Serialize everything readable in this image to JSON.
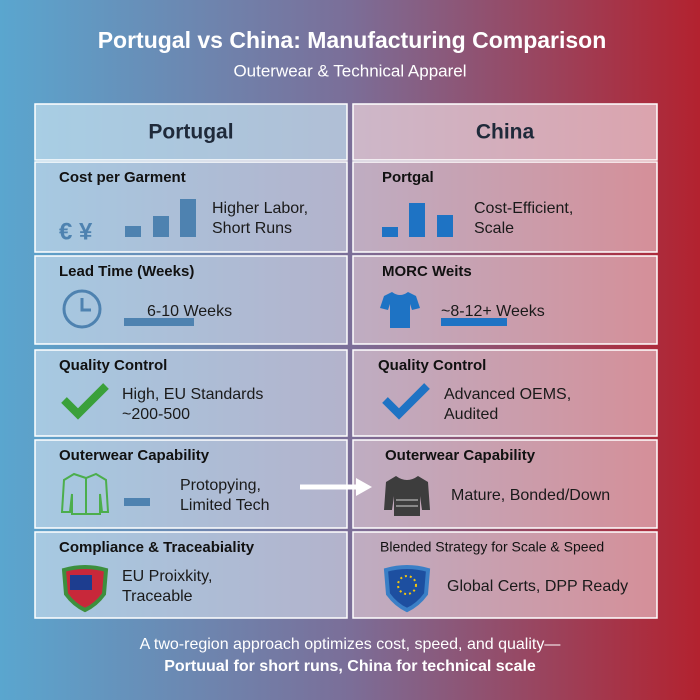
{
  "header": {
    "title": "Portugal vs China: Manufacturing Comparison",
    "subtitle": "Outerwear & Technical Apparel"
  },
  "columns": [
    {
      "heading": "Portugal",
      "rows": [
        {
          "title": "Cost per Garment",
          "symbols": "€ ¥",
          "lines": [
            "Higher Labor,",
            "Short Runs"
          ]
        },
        {
          "title": "Lead Time (Weeks)",
          "lines": [
            "6-10 Weeks"
          ]
        },
        {
          "title": "Quality Control",
          "lines": [
            "High, EU Standards",
            "~200-500"
          ]
        },
        {
          "title": "Outerwear Capability",
          "lines": [
            "Protopying,",
            "Limited Tech"
          ]
        },
        {
          "title": "Compliance & Traceabiality",
          "lines": [
            "EU Proixkity,",
            "Traceable"
          ]
        }
      ]
    },
    {
      "heading": "China",
      "rows": [
        {
          "title": "Portgal",
          "lines": [
            "Cost-Efficient,",
            "Scale"
          ]
        },
        {
          "title": "MORC Weits",
          "lines": [
            "~8-12+ Weeks"
          ]
        },
        {
          "title": "Quality Control",
          "lines": [
            "Advanced OEMS,",
            "Audited"
          ]
        },
        {
          "title": "Outerwear Capability",
          "lines": [
            "Mature, Bonded/Down"
          ]
        },
        {
          "title": "Blended Strategy for Scale & Speed",
          "lines": [
            "Global Certs, DPP Ready"
          ]
        }
      ]
    }
  ],
  "footer": {
    "lines": [
      "A two-region approach optimizes cost, speed, and quality—",
      "Portuual for short runs, China for technical scale"
    ]
  }
}
